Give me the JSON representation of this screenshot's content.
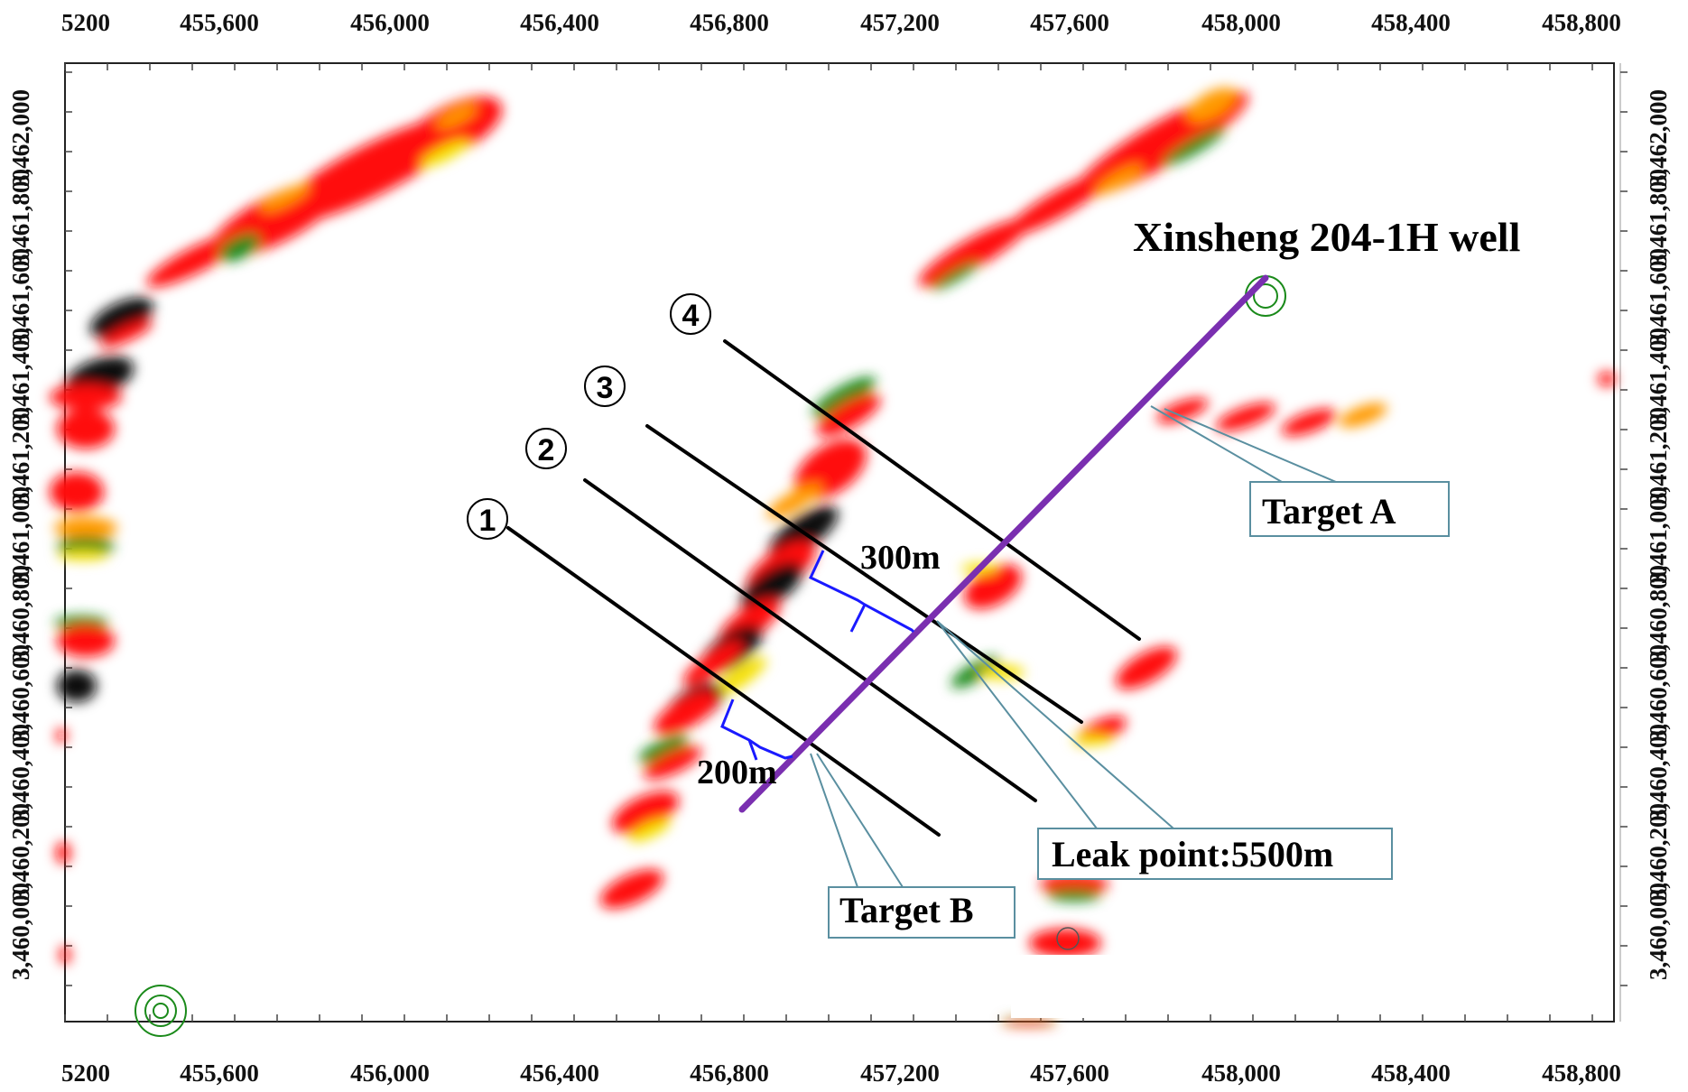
{
  "map": {
    "x_ticks": [
      "5200",
      "455,600",
      "456,000",
      "456,400",
      "456,800",
      "457,200",
      "457,600",
      "458,000",
      "458,400",
      "458,800"
    ],
    "y_ticks": [
      "3,462,000",
      "3,461,600",
      "3,461,200",
      "3,460,800",
      "3,460,400",
      "3,460,000"
    ],
    "y_ticks_minor": [
      "3,461,800",
      "3,461,400",
      "3,461,000",
      "3,460,600",
      "3,460,200"
    ],
    "well_label": "Xinsheng 204-1H well",
    "target_a_label": "Target A",
    "target_b_label": "Target B",
    "leak_label": "Leak point:5500m",
    "dist_300": "300m",
    "dist_200": "200m",
    "survey_lines": [
      "①",
      "②",
      "③",
      "④"
    ],
    "colors": {
      "red": "#ff1010",
      "black": "#111111",
      "green": "#1a8a1a",
      "yellow": "#f5e000",
      "orange": "#ff9a00",
      "purple": "#7a2fb0",
      "blue": "#1a1aff",
      "callout": "#5a8fa0"
    }
  }
}
